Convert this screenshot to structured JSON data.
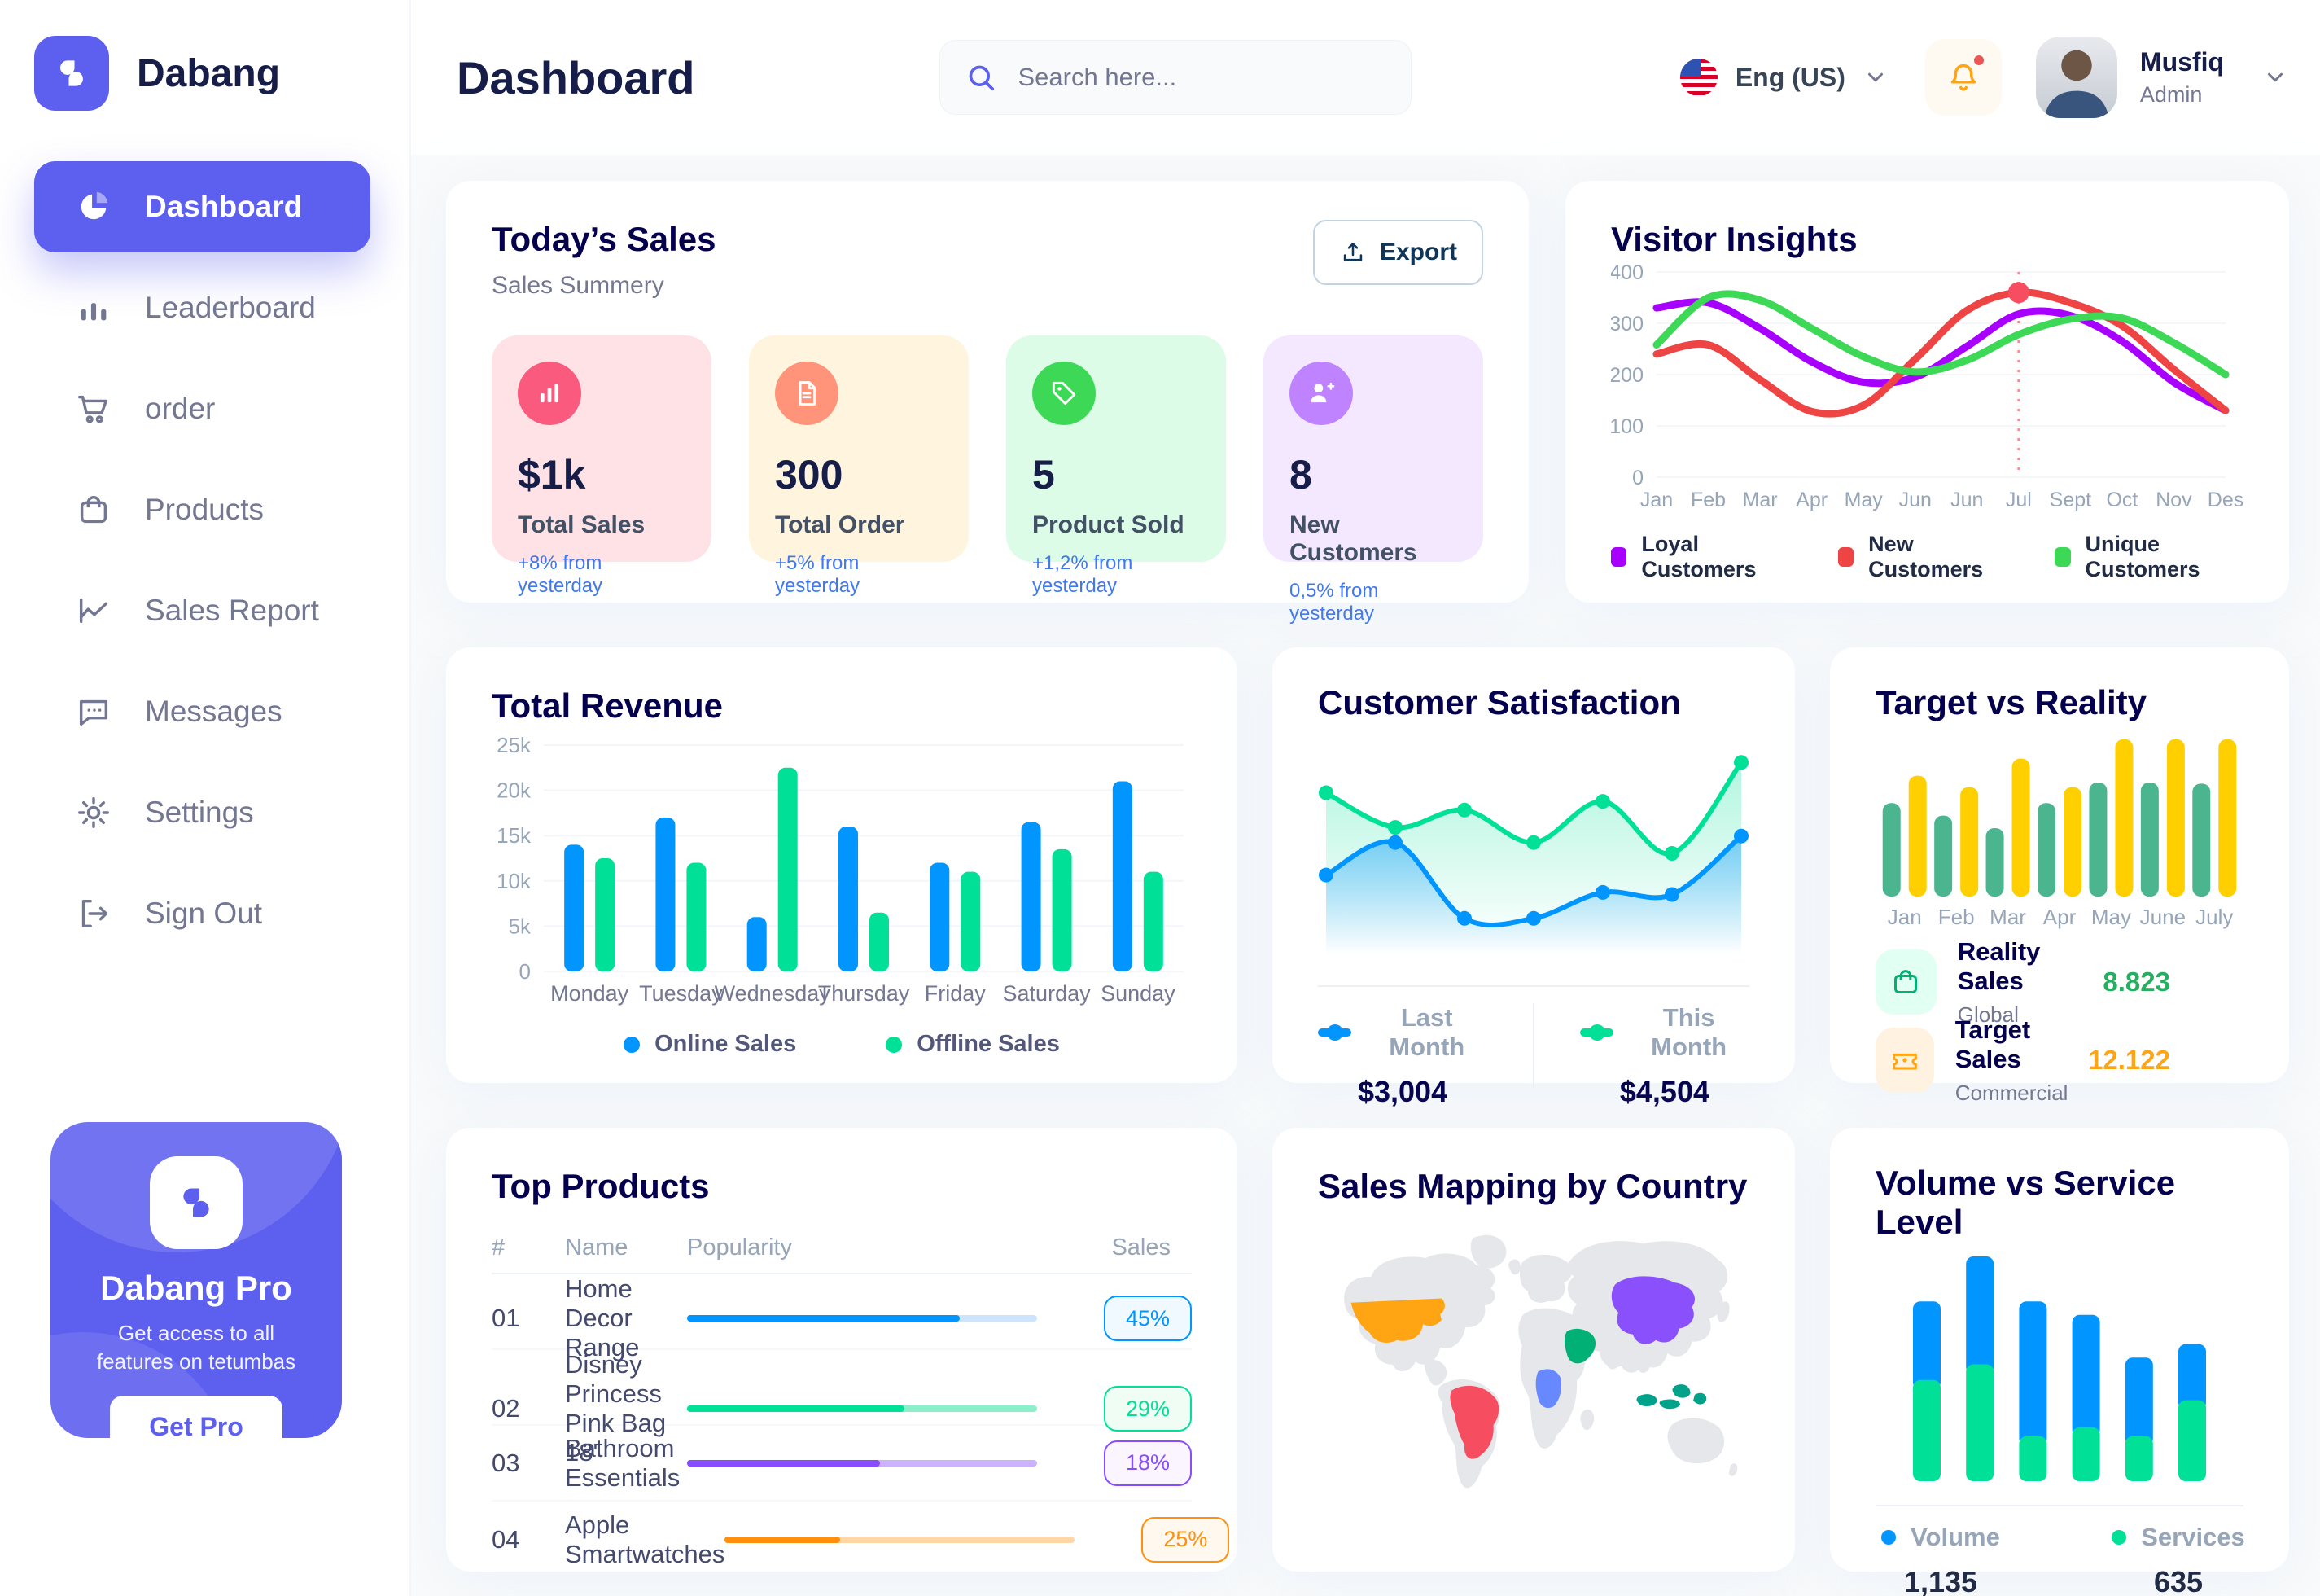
{
  "sidebar": {
    "brand": "Dabang",
    "items": [
      {
        "label": "Dashboard",
        "icon": "pie",
        "active": true
      },
      {
        "label": "Leaderboard",
        "icon": "bars",
        "active": false
      },
      {
        "label": "order",
        "icon": "cart",
        "active": false
      },
      {
        "label": "Products",
        "icon": "bag",
        "active": false
      },
      {
        "label": "Sales Report",
        "icon": "chart",
        "active": false
      },
      {
        "label": "Messages",
        "icon": "message",
        "active": false
      },
      {
        "label": "Settings",
        "icon": "gear",
        "active": false
      },
      {
        "label": "Sign Out",
        "icon": "signout",
        "active": false
      }
    ],
    "pro": {
      "title": "Dabang Pro",
      "subtitle": "Get access to all features on tetumbas",
      "cta": "Get Pro"
    }
  },
  "header": {
    "title": "Dashboard",
    "search_placeholder": "Search here...",
    "language": "Eng (US)",
    "user": {
      "name": "Musfiq",
      "role": "Admin"
    }
  },
  "today_sales": {
    "title": "Today’s Sales",
    "subtitle": "Sales Summery",
    "export_label": "Export",
    "delta_color": "#4079ED",
    "cards": [
      {
        "value": "$1k",
        "label": "Total Sales",
        "delta": "+8% from yesterday",
        "bg": "#FFE2E5",
        "icon_bg": "#FA5A7D",
        "icon": "stats"
      },
      {
        "value": "300",
        "label": "Total Order",
        "delta": "+5% from yesterday",
        "bg": "#FFF4DE",
        "icon_bg": "#FF947A",
        "icon": "file"
      },
      {
        "value": "5",
        "label": "Product Sold",
        "delta": "+1,2% from yesterday",
        "bg": "#DCFCE7",
        "icon_bg": "#3CD856",
        "icon": "tag"
      },
      {
        "value": "8",
        "label": "New Customers",
        "delta": "0,5% from yesterday",
        "bg": "#F3E8FF",
        "icon_bg": "#BF83FF",
        "icon": "userplus"
      }
    ]
  },
  "top_products": {
    "title": "Top Products",
    "headers": [
      "#",
      "Name",
      "Popularity",
      "Sales"
    ],
    "rows": [
      {
        "num": "01",
        "name": "Home Decor Range",
        "popularity": 78,
        "sales": "45%",
        "color": "#0095FF",
        "track": "#CDE4FF",
        "badge_bg": "#F0F9FF"
      },
      {
        "num": "02",
        "name": "Disney Princess Pink Bag 18'",
        "popularity": 62,
        "sales": "29%",
        "color": "#00E096",
        "track": "#8CEFC9",
        "badge_bg": "#F0FDF4"
      },
      {
        "num": "03",
        "name": "Bathroom Essentials",
        "popularity": 55,
        "sales": "18%",
        "color": "#884DFF",
        "track": "#CBB2FF",
        "badge_bg": "#FBF5FF"
      },
      {
        "num": "04",
        "name": "Apple Smartwatches",
        "popularity": 33,
        "sales": "25%",
        "color": "#FF8F0D",
        "track": "#FFD6A4",
        "badge_bg": "#FFF8EE"
      }
    ]
  },
  "sales_mapping": {
    "title": "Sales Mapping by Country",
    "countries": [
      {
        "name": "United States",
        "color": "#FFA412"
      },
      {
        "name": "Brazil",
        "color": "#F64E60"
      },
      {
        "name": "DR Congo",
        "color": "#6788FF"
      },
      {
        "name": "Saudi Arabia",
        "color": "#00B074"
      },
      {
        "name": "China",
        "color": "#8950FC"
      },
      {
        "name": "Indonesia",
        "color": "#00A389"
      }
    ]
  },
  "chart_data": [
    {
      "id": "visitor_insights",
      "type": "line",
      "title": "Visitor Insights",
      "x": [
        "Jan",
        "Feb",
        "Mar",
        "Apr",
        "May",
        "Jun",
        "Jun",
        "Jul",
        "Sept",
        "Oct",
        "Nov",
        "Des"
      ],
      "ylim": [
        0,
        400
      ],
      "yticks": [
        0,
        100,
        200,
        300,
        400
      ],
      "legend_position": "bottom",
      "grid": true,
      "series": [
        {
          "name": "Loyal Customers",
          "color": "#A700FF",
          "values": [
            330,
            340,
            290,
            225,
            185,
            195,
            255,
            318,
            315,
            265,
            185,
            130
          ]
        },
        {
          "name": "New Customers",
          "color": "#EF4444",
          "values": [
            240,
            258,
            190,
            128,
            140,
            230,
            325,
            360,
            340,
            295,
            210,
            130
          ]
        },
        {
          "name": "Unique Customers",
          "color": "#3CD856",
          "values": [
            258,
            350,
            345,
            290,
            235,
            205,
            228,
            278,
            308,
            310,
            262,
            200
          ]
        }
      ],
      "highlight": {
        "x_index": 7,
        "x_label": "Jul",
        "series": "New Customers",
        "value": 360
      }
    },
    {
      "id": "total_revenue",
      "type": "bar",
      "title": "Total Revenue",
      "categories": [
        "Monday",
        "Tuesday",
        "Wednesday",
        "Thursday",
        "Friday",
        "Saturday",
        "Sunday"
      ],
      "ylim": [
        0,
        25000
      ],
      "ytick_labels": [
        "0",
        "5k",
        "10k",
        "15k",
        "20k",
        "25k"
      ],
      "grid": true,
      "legend_position": "bottom",
      "series": [
        {
          "name": "Online Sales",
          "color": "#0095FF",
          "values": [
            14000,
            17000,
            6000,
            16000,
            12000,
            16500,
            21000
          ]
        },
        {
          "name": "Offline Sales",
          "color": "#00E096",
          "values": [
            12500,
            12000,
            22500,
            6500,
            11000,
            13500,
            11000
          ]
        }
      ]
    },
    {
      "id": "customer_satisfaction",
      "type": "area",
      "title": "Customer Satisfaction",
      "ylim": [
        0,
        100
      ],
      "grid": false,
      "legend_position": "bottom",
      "series": [
        {
          "name": "Last Month",
          "color": "#0095FF",
          "total": "$3,004",
          "values": [
            40,
            55,
            20,
            20,
            32,
            31,
            58
          ]
        },
        {
          "name": "This Month",
          "color": "#00E096",
          "total": "$4,504",
          "values": [
            78,
            62,
            70,
            55,
            74,
            50,
            92
          ]
        }
      ]
    },
    {
      "id": "target_vs_reality",
      "type": "bar",
      "title": "Target vs Reality",
      "categories": [
        "Jan",
        "Feb",
        "Mar",
        "Apr",
        "May",
        "June",
        "July"
      ],
      "ylim": [
        0,
        14
      ],
      "grid": false,
      "legend_position": "bottom",
      "series": [
        {
          "name": "Reality Sales",
          "color": "#4AB58E",
          "values": [
            8.2,
            7.1,
            6,
            8.2,
            10,
            10,
            9.9
          ]
        },
        {
          "name": "Target Sales",
          "color": "#FFCF00",
          "values": [
            10.6,
            9.6,
            12.1,
            9.6,
            13.8,
            13.8,
            13.8
          ]
        }
      ],
      "legend": [
        {
          "label": "Reality Sales",
          "sublabel": "Global",
          "value": "8.823",
          "value_color": "#27AE60",
          "icon": "bag",
          "icon_bg": "#E2FFF3",
          "icon_color": "#00B074"
        },
        {
          "label": "Target Sales",
          "sublabel": "Commercial",
          "value": "12.122",
          "value_color": "#FFA412",
          "icon": "ticket",
          "icon_bg": "#FFF2E0",
          "icon_color": "#FFA412"
        }
      ]
    },
    {
      "id": "volume_vs_service",
      "type": "stacked-bar",
      "title": "Volume vs Service Level",
      "ylim": [
        0,
        100
      ],
      "grid": false,
      "legend_position": "bottom",
      "series": [
        {
          "name": "Volume",
          "color": "#0095FF",
          "total": "1,135",
          "values": [
            35,
            48,
            60,
            50,
            35,
            25
          ]
        },
        {
          "name": "Services",
          "color": "#00E096",
          "total": "635",
          "values": [
            45,
            52,
            20,
            24,
            20,
            36
          ]
        }
      ]
    }
  ]
}
